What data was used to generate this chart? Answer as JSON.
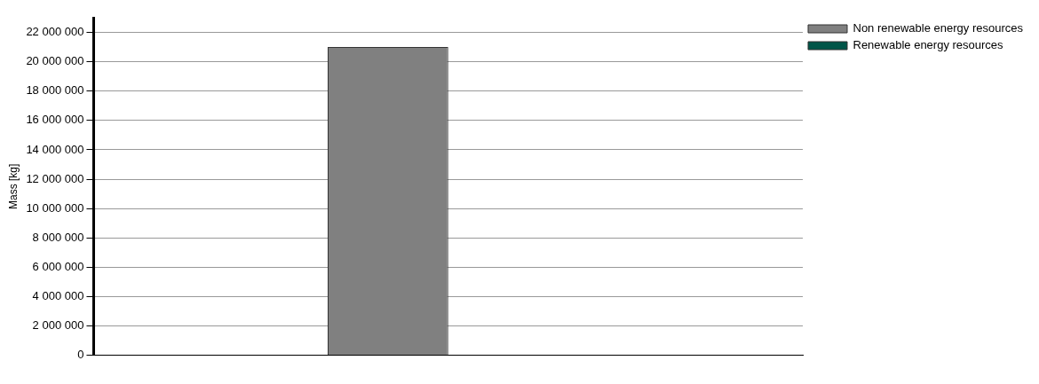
{
  "chart_data": {
    "type": "bar",
    "ylabel": "Mass [kg]",
    "categories": [
      null
    ],
    "series": [
      {
        "name": "Non renewable energy resources",
        "color": "#808080",
        "values": [
          21000000
        ]
      },
      {
        "name": "Renewable energy resources",
        "color": "#005548",
        "values": [
          0
        ]
      }
    ],
    "ylim": [
      0,
      23000000
    ],
    "yticks": [
      0,
      2000000,
      4000000,
      6000000,
      8000000,
      10000000,
      12000000,
      14000000,
      16000000,
      18000000,
      20000000,
      22000000
    ],
    "grid": "y",
    "legend": "top right"
  }
}
